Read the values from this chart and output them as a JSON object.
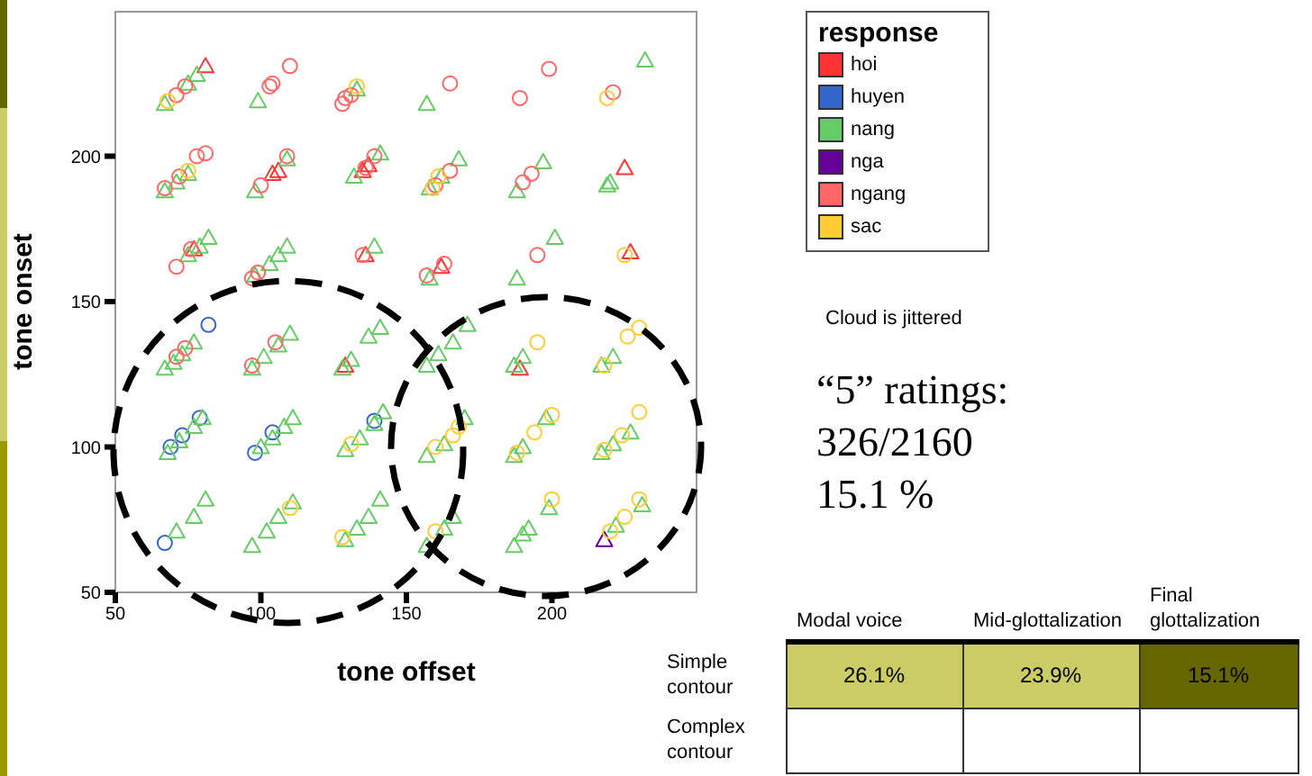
{
  "chart_data": [
    {
      "type": "scatter",
      "xlabel": "tone offset",
      "ylabel": "tone onset",
      "legend_title": "response",
      "legend": "right",
      "xlim": [
        50,
        250
      ],
      "ylim": [
        50,
        250
      ],
      "xticks": [
        50,
        100,
        150,
        200
      ],
      "yticks": [
        50,
        100,
        150,
        200
      ],
      "annotations": [
        "Cloud is jittered",
        "“5” ratings:",
        "326/2160",
        "15.1 %"
      ],
      "series": [
        {
          "name": "hoi",
          "color": "#ff3333",
          "marker": "triangle",
          "x": [
            81,
            104,
            106,
            135,
            137,
            225,
            77,
            136,
            162,
            227,
            129,
            189
          ],
          "values": [
            231,
            194,
            195,
            195,
            197,
            196,
            168,
            166,
            162,
            167,
            128,
            127
          ]
        },
        {
          "name": "huyen",
          "color": "#3366cc",
          "marker": "circle",
          "x": [
            82,
            69,
            73,
            79,
            98,
            104,
            139,
            67
          ],
          "values": [
            142,
            100,
            104,
            110,
            98,
            105,
            109,
            67
          ]
        },
        {
          "name": "nang",
          "color": "#66cc66",
          "marker": "triangle",
          "x": [
            67,
            75,
            78,
            99,
            133,
            157,
            232,
            67,
            71,
            75,
            98,
            109,
            132,
            141,
            158,
            162,
            168,
            188,
            197,
            219,
            220,
            75,
            79,
            82,
            98,
            103,
            106,
            109,
            139,
            158,
            188,
            201,
            67,
            70,
            73,
            77,
            97,
            101,
            106,
            110,
            128,
            131,
            137,
            141,
            157,
            161,
            166,
            171,
            187,
            190,
            217,
            221,
            68,
            72,
            77,
            80,
            100,
            104,
            108,
            111,
            129,
            134,
            139,
            142,
            157,
            163,
            170,
            187,
            190,
            198,
            217,
            221,
            227,
            71,
            77,
            81,
            97,
            102,
            106,
            111,
            129,
            133,
            137,
            141,
            157,
            163,
            166,
            187,
            190,
            192,
            199,
            222,
            231
          ],
          "values": [
            218,
            225,
            228,
            219,
            223,
            218,
            233,
            188,
            191,
            194,
            188,
            199,
            193,
            201,
            189,
            193,
            199,
            188,
            198,
            190,
            191,
            166,
            169,
            172,
            159,
            163,
            166,
            169,
            169,
            158,
            158,
            172,
            127,
            129,
            132,
            136,
            127,
            131,
            135,
            139,
            127,
            130,
            138,
            141,
            128,
            132,
            136,
            142,
            128,
            131,
            128,
            131,
            98,
            102,
            107,
            110,
            100,
            103,
            107,
            110,
            99,
            103,
            108,
            112,
            97,
            101,
            110,
            97,
            100,
            110,
            98,
            101,
            105,
            71,
            76,
            82,
            66,
            71,
            76,
            81,
            68,
            72,
            76,
            82,
            66,
            72,
            76,
            66,
            70,
            72,
            79,
            73,
            80
          ]
        },
        {
          "name": "nga",
          "color": "#660099",
          "marker": "triangle",
          "x": [
            218
          ],
          "values": [
            68
          ]
        },
        {
          "name": "ngang",
          "color": "#ff6666",
          "marker": "circle",
          "x": [
            71,
            74,
            103,
            104,
            110,
            128,
            129,
            131,
            165,
            199,
            189,
            221,
            67,
            72,
            78,
            81,
            100,
            109,
            136,
            139,
            160,
            165,
            190,
            193,
            71,
            76,
            97,
            99,
            135,
            157,
            163,
            195,
            71,
            74,
            97,
            105
          ],
          "values": [
            221,
            224,
            224,
            225,
            231,
            218,
            220,
            221,
            225,
            230,
            220,
            222,
            189,
            193,
            200,
            201,
            190,
            200,
            196,
            200,
            190,
            195,
            191,
            194,
            162,
            168,
            158,
            160,
            166,
            159,
            163,
            166,
            131,
            134,
            128,
            136
          ]
        },
        {
          "name": "sac",
          "color": "#ffcc33",
          "marker": "circle",
          "x": [
            68,
            133,
            219,
            75,
            159,
            161,
            225,
            195,
            218,
            226,
            230,
            131,
            160,
            166,
            168,
            188,
            194,
            200,
            218,
            224,
            230,
            110,
            128,
            160,
            200,
            220,
            225,
            230
          ],
          "values": [
            219,
            224,
            220,
            195,
            189,
            193,
            166,
            136,
            128,
            138,
            141,
            101,
            100,
            104,
            107,
            98,
            105,
            111,
            99,
            104,
            112,
            79,
            69,
            71,
            82,
            71,
            76,
            82
          ]
        }
      ]
    },
    {
      "type": "heatmap",
      "categories": [
        "Modal voice",
        "Mid-glottalization",
        "Final glottalization"
      ],
      "y_categories": [
        "Simple contour",
        "Complex contour"
      ],
      "cells": [
        [
          26.1,
          23.9,
          15.1
        ],
        [
          null,
          null,
          null
        ]
      ],
      "cell_labels": [
        [
          "26.1%",
          "23.9%",
          "15.1%"
        ],
        [
          null,
          null,
          null
        ]
      ],
      "colors": [
        [
          "#cccc66",
          "#cccc66",
          "#666600"
        ],
        [
          null,
          null,
          null
        ]
      ]
    }
  ]
}
